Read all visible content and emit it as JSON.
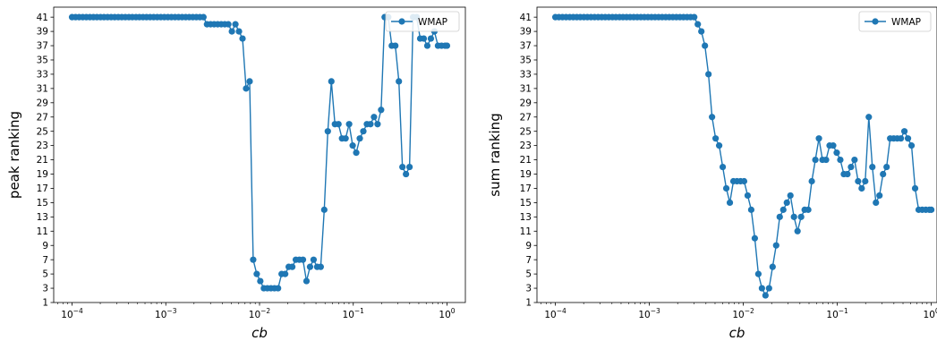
{
  "chart_data": [
    {
      "type": "line",
      "xscale": "log",
      "xlabel": "cb",
      "ylabel": "peak ranking",
      "xlim": [
        6.37e-05,
        1.57
      ],
      "ylim": [
        1,
        42.4
      ],
      "xticks": [
        {
          "value": 0.0001,
          "mantissa": "10",
          "exp": "−4"
        },
        {
          "value": 0.001,
          "mantissa": "10",
          "exp": "−3"
        },
        {
          "value": 0.01,
          "mantissa": "10",
          "exp": "−2"
        },
        {
          "value": 0.1,
          "mantissa": "10",
          "exp": "−1"
        },
        {
          "value": 1,
          "mantissa": "10",
          "exp": "0"
        }
      ],
      "yticks": [
        1,
        3,
        5,
        7,
        9,
        11,
        13,
        15,
        17,
        19,
        21,
        23,
        25,
        27,
        29,
        31,
        33,
        35,
        37,
        39,
        41
      ],
      "legend": {
        "location": "upper right",
        "entries": [
          "WMAP"
        ]
      },
      "grid": false,
      "series": [
        {
          "name": "WMAP",
          "color": "#1f77b4",
          "marker": "circle",
          "x": [
            0.0001,
            0.000109,
            0.000119,
            0.00013,
            0.000142,
            0.000155,
            0.000169,
            0.000184,
            0.000201,
            0.000219,
            0.000239,
            0.000261,
            0.000285,
            0.000311,
            0.000339,
            0.00037,
            0.000404,
            0.00044,
            0.000481,
            0.000524,
            0.000572,
            0.000624,
            0.000681,
            0.000743,
            0.000811,
            0.000885,
            0.000966,
            0.001054,
            0.00115,
            0.001255,
            0.001369,
            0.001494,
            0.00163,
            0.001779,
            0.001941,
            0.002118,
            0.002311,
            0.002522,
            0.002752,
            0.003003,
            0.003277,
            0.003576,
            0.003902,
            0.004258,
            0.004646,
            0.00507,
            0.005532,
            0.006037,
            0.006587,
            0.007188,
            0.007844,
            0.008559,
            0.00934,
            0.010192,
            0.011121,
            0.012136,
            0.013243,
            0.014451,
            0.015769,
            0.017207,
            0.018776,
            0.020489,
            0.022358,
            0.024397,
            0.026622,
            0.02905,
            0.031699,
            0.03459,
            0.037745,
            0.041188,
            0.044944,
            0.049043,
            0.053516,
            0.058397,
            0.063723,
            0.069535,
            0.075877,
            0.082797,
            0.090348,
            0.098588,
            0.107579,
            0.117391,
            0.128097,
            0.13978,
            0.152528,
            0.166439,
            0.181619,
            0.198183,
            0.216258,
            0.235981,
            0.257502,
            0.280987,
            0.306614,
            0.334577,
            0.36509,
            0.398387,
            0.43472,
            0.474367,
            0.517631,
            0.56484,
            0.616355,
            0.672567,
            0.733906,
            0.800839,
            0.873876,
            0.953575,
            1.0
          ],
          "y": [
            41,
            41,
            41,
            41,
            41,
            41,
            41,
            41,
            41,
            41,
            41,
            41,
            41,
            41,
            41,
            41,
            41,
            41,
            41,
            41,
            41,
            41,
            41,
            41,
            41,
            41,
            41,
            41,
            41,
            41,
            41,
            41,
            41,
            41,
            41,
            41,
            41,
            41,
            40,
            40,
            40,
            40,
            40,
            40,
            40,
            39,
            40,
            39,
            38,
            31,
            32,
            7,
            5,
            4,
            3,
            3,
            3,
            3,
            3,
            5,
            5,
            6,
            6,
            7,
            7,
            7,
            4,
            6,
            7,
            6,
            6,
            14,
            25,
            32,
            26,
            26,
            24,
            24,
            26,
            23,
            22,
            24,
            25,
            26,
            26,
            27,
            26,
            28,
            41,
            41,
            37,
            37,
            32,
            20,
            19,
            20,
            41,
            41,
            38,
            38,
            37,
            38,
            39,
            37,
            37,
            37,
            37
          ]
        }
      ]
    },
    {
      "type": "line",
      "xscale": "log",
      "xlabel": "cb",
      "ylabel": "sum ranking",
      "xlim": [
        6.37e-05,
        1.15
      ],
      "ylim": [
        1,
        42.4
      ],
      "xticks": [
        {
          "value": 0.0001,
          "mantissa": "10",
          "exp": "−4"
        },
        {
          "value": 0.001,
          "mantissa": "10",
          "exp": "−3"
        },
        {
          "value": 0.01,
          "mantissa": "10",
          "exp": "−2"
        },
        {
          "value": 0.1,
          "mantissa": "10",
          "exp": "−1"
        },
        {
          "value": 1,
          "mantissa": "10",
          "exp": "0"
        }
      ],
      "yticks": [
        1,
        3,
        5,
        7,
        9,
        11,
        13,
        15,
        17,
        19,
        21,
        23,
        25,
        27,
        29,
        31,
        33,
        35,
        37,
        39,
        41
      ],
      "legend": {
        "location": "upper right",
        "entries": [
          "WMAP"
        ]
      },
      "grid": false,
      "series": [
        {
          "name": "WMAP",
          "color": "#1f77b4",
          "marker": "circle",
          "x": [
            0.0001,
            0.000109,
            0.000119,
            0.00013,
            0.000142,
            0.000155,
            0.000169,
            0.000184,
            0.000201,
            0.000219,
            0.000239,
            0.000261,
            0.000285,
            0.000311,
            0.000339,
            0.00037,
            0.000404,
            0.00044,
            0.000481,
            0.000524,
            0.000572,
            0.000624,
            0.000681,
            0.000743,
            0.000811,
            0.000885,
            0.000966,
            0.001054,
            0.00115,
            0.001255,
            0.001369,
            0.001494,
            0.00163,
            0.001779,
            0.001941,
            0.002118,
            0.002311,
            0.002522,
            0.002752,
            0.003003,
            0.003277,
            0.003576,
            0.003902,
            0.004258,
            0.004646,
            0.00507,
            0.005532,
            0.006037,
            0.006587,
            0.007188,
            0.007844,
            0.008559,
            0.00934,
            0.010192,
            0.011121,
            0.012136,
            0.013243,
            0.014451,
            0.015769,
            0.017207,
            0.018776,
            0.020489,
            0.022358,
            0.024397,
            0.026622,
            0.02905,
            0.031699,
            0.03459,
            0.037745,
            0.041188,
            0.044944,
            0.049043,
            0.053516,
            0.058397,
            0.063723,
            0.069535,
            0.075877,
            0.082797,
            0.090348,
            0.098588,
            0.107579,
            0.117391,
            0.128097,
            0.13978,
            0.152528,
            0.166439,
            0.181619,
            0.198183,
            0.216258,
            0.235981,
            0.257502,
            0.280987,
            0.306614,
            0.334577,
            0.36509,
            0.398387,
            0.43472,
            0.474367,
            0.517631,
            0.56484,
            0.616355,
            0.672567,
            0.733906,
            0.800839,
            0.873876,
            0.953575,
            1.0
          ],
          "y": [
            41,
            41,
            41,
            41,
            41,
            41,
            41,
            41,
            41,
            41,
            41,
            41,
            41,
            41,
            41,
            41,
            41,
            41,
            41,
            41,
            41,
            41,
            41,
            41,
            41,
            41,
            41,
            41,
            41,
            41,
            41,
            41,
            41,
            41,
            41,
            41,
            41,
            41,
            41,
            41,
            40,
            39,
            37,
            33,
            27,
            24,
            23,
            20,
            17,
            15,
            18,
            18,
            18,
            18,
            16,
            14,
            10,
            5,
            3,
            2,
            3,
            6,
            9,
            13,
            14,
            15,
            16,
            13,
            11,
            13,
            14,
            14,
            18,
            21,
            24,
            21,
            21,
            23,
            23,
            22,
            21,
            19,
            19,
            20,
            21,
            18,
            17,
            18,
            27,
            20,
            15,
            16,
            19,
            20,
            24,
            24,
            24,
            24,
            25,
            24,
            23,
            17,
            14,
            14,
            14,
            14,
            14
          ]
        }
      ]
    }
  ]
}
